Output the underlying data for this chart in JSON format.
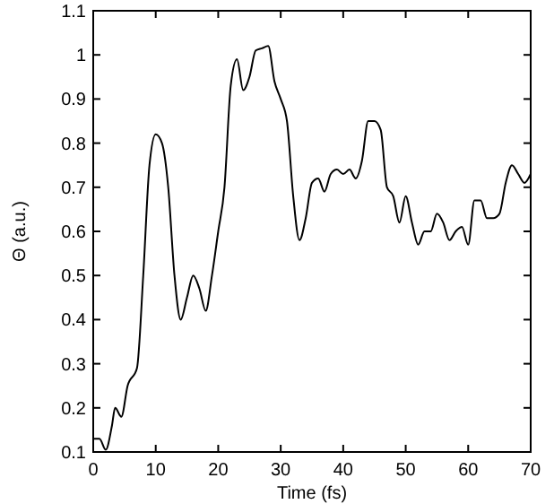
{
  "chart_data": {
    "type": "line",
    "xlabel": "Time (fs)",
    "ylabel": "Θ (a.u.)",
    "xlim": [
      0,
      70
    ],
    "ylim": [
      0.1,
      1.1
    ],
    "xticks": [
      0,
      10,
      20,
      30,
      40,
      50,
      60,
      70
    ],
    "yticks": [
      0.1,
      0.2,
      0.3,
      0.4,
      0.5,
      0.6,
      0.7,
      0.8,
      0.9,
      1,
      1.1
    ],
    "grid": false,
    "marker": "none",
    "line_style": "solid",
    "series": [
      {
        "color": "#000000",
        "x": [
          0,
          1,
          2,
          3,
          3.5,
          4.5,
          5.5,
          7,
          8,
          9,
          10,
          11,
          12,
          13,
          14,
          15,
          16,
          17,
          18,
          19,
          20,
          21,
          22,
          23,
          24,
          25,
          26,
          27,
          28,
          29,
          30,
          31,
          32,
          33,
          34,
          35,
          36,
          37,
          38,
          39,
          40,
          41,
          42,
          43,
          44,
          45,
          46,
          47,
          48,
          49,
          50,
          51,
          52,
          53,
          54,
          55,
          56,
          57,
          58,
          59,
          60,
          61,
          62,
          63,
          64,
          65,
          66,
          67,
          68,
          69,
          70
        ],
        "values": [
          0.13,
          0.13,
          0.105,
          0.16,
          0.2,
          0.18,
          0.25,
          0.29,
          0.5,
          0.75,
          0.82,
          0.8,
          0.7,
          0.5,
          0.4,
          0.45,
          0.5,
          0.47,
          0.42,
          0.5,
          0.6,
          0.7,
          0.93,
          0.99,
          0.92,
          0.95,
          1.01,
          1.015,
          1.02,
          0.94,
          0.9,
          0.85,
          0.68,
          0.58,
          0.63,
          0.71,
          0.72,
          0.69,
          0.73,
          0.74,
          0.73,
          0.74,
          0.72,
          0.76,
          0.85,
          0.85,
          0.83,
          0.7,
          0.68,
          0.62,
          0.68,
          0.62,
          0.57,
          0.6,
          0.6,
          0.64,
          0.62,
          0.58,
          0.6,
          0.61,
          0.57,
          0.67,
          0.67,
          0.63,
          0.63,
          0.64,
          0.71,
          0.75,
          0.73,
          0.71,
          0.73
        ]
      }
    ]
  }
}
